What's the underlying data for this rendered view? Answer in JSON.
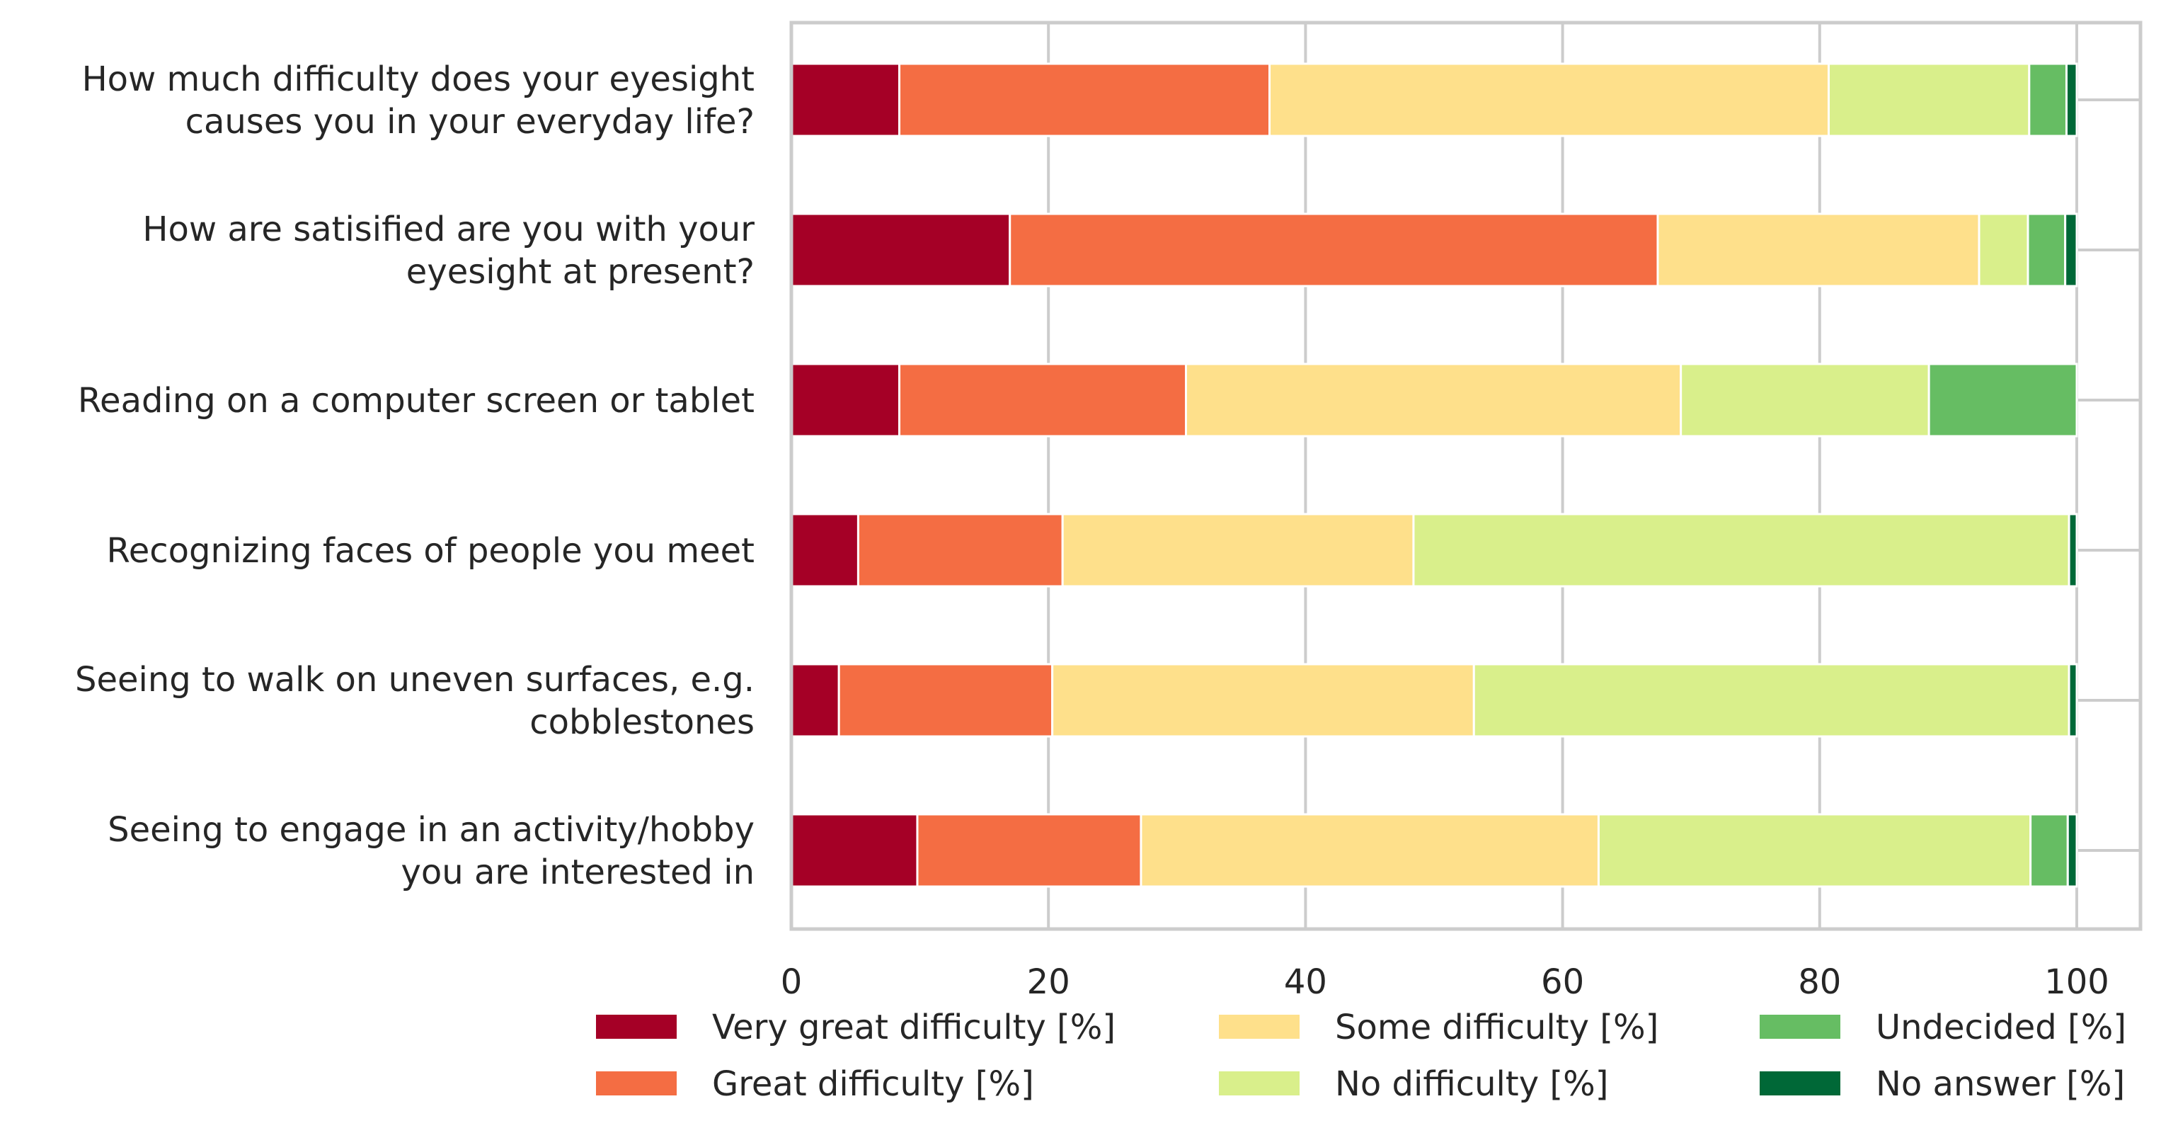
{
  "chart_data": {
    "type": "bar",
    "orientation": "horizontal",
    "stacked": true,
    "title": "",
    "xlabel": "",
    "ylabel": "",
    "xlim": [
      0,
      100
    ],
    "xticks": [
      0,
      20,
      40,
      60,
      80,
      100
    ],
    "grid": true,
    "legend_position": "bottom",
    "categories": [
      [
        "How much difficulty does your eyesight",
        "causes you in your everyday life?"
      ],
      [
        "How are satisified are you with your",
        "eyesight at present?"
      ],
      [
        "Reading on a computer screen or tablet"
      ],
      [
        "Recognizing faces of people you meet"
      ],
      [
        "Seeing to walk on uneven surfaces, e.g.",
        "cobblestones"
      ],
      [
        "Seeing to engage in an activity/hobby",
        "you are interested in"
      ]
    ],
    "series": [
      {
        "name": "Very great difficulty [%]",
        "color": "#a50026",
        "values": [
          8.4,
          17.0,
          8.4,
          5.2,
          3.7,
          9.8
        ]
      },
      {
        "name": "Great difficulty [%]",
        "color": "#f46d43",
        "values": [
          28.8,
          50.4,
          22.3,
          15.9,
          16.6,
          17.4
        ]
      },
      {
        "name": "Some difficulty [%]",
        "color": "#fee08b",
        "values": [
          43.5,
          25.0,
          38.5,
          27.3,
          32.8,
          35.6
        ]
      },
      {
        "name": "No difficulty [%]",
        "color": "#d9ef8b",
        "values": [
          15.6,
          3.8,
          19.3,
          51.0,
          46.3,
          33.6
        ]
      },
      {
        "name": "Undecided [%]",
        "color": "#66bd63",
        "values": [
          2.9,
          2.9,
          11.5,
          0.0,
          0.0,
          2.9
        ]
      },
      {
        "name": "No answer [%]",
        "color": "#006837",
        "values": [
          0.8,
          0.9,
          0.0,
          0.6,
          0.6,
          0.7
        ]
      }
    ]
  }
}
